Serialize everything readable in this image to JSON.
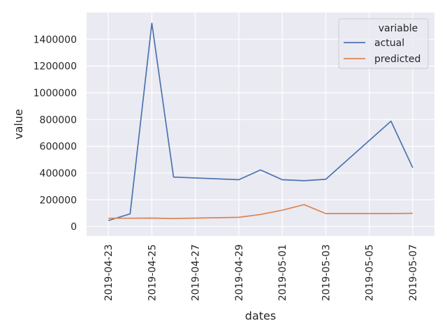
{
  "chart_data": {
    "type": "line",
    "xlabel": "dates",
    "ylabel": "value",
    "legend_title": "variable",
    "legend_position": "top-right",
    "grid": true,
    "background_color": "#EAEAF2",
    "x_ticks": [
      "2019-04-23",
      "2019-04-25",
      "2019-04-27",
      "2019-04-29",
      "2019-05-01",
      "2019-05-03",
      "2019-05-05",
      "2019-05-07"
    ],
    "y_ticks": [
      "0",
      "200000",
      "400000",
      "600000",
      "800000",
      "1000000",
      "1200000",
      "1400000"
    ],
    "xlim": [
      "2019-04-22",
      "2019-05-08"
    ],
    "ylim": [
      -70000,
      1600000
    ],
    "series": [
      {
        "name": "actual",
        "color": "#4C72B0",
        "points": [
          [
            "2019-04-23",
            45000
          ],
          [
            "2019-04-24",
            95000
          ],
          [
            "2019-04-25",
            1520000
          ],
          [
            "2019-04-26",
            370000
          ],
          [
            "2019-04-29",
            350000
          ],
          [
            "2019-04-30",
            423000
          ],
          [
            "2019-05-01",
            350000
          ],
          [
            "2019-05-02",
            343000
          ],
          [
            "2019-05-03",
            353000
          ],
          [
            "2019-05-06",
            788000
          ],
          [
            "2019-05-07",
            440000
          ]
        ]
      },
      {
        "name": "predicted",
        "color": "#DD8452",
        "points": [
          [
            "2019-04-23",
            62000
          ],
          [
            "2019-04-24",
            62000
          ],
          [
            "2019-04-25",
            63000
          ],
          [
            "2019-04-26",
            60000
          ],
          [
            "2019-04-29",
            69000
          ],
          [
            "2019-04-30",
            90000
          ],
          [
            "2019-05-01",
            122000
          ],
          [
            "2019-05-02",
            164000
          ],
          [
            "2019-05-03",
            97000
          ],
          [
            "2019-05-06",
            97000
          ],
          [
            "2019-05-07",
            99000
          ]
        ]
      }
    ]
  }
}
